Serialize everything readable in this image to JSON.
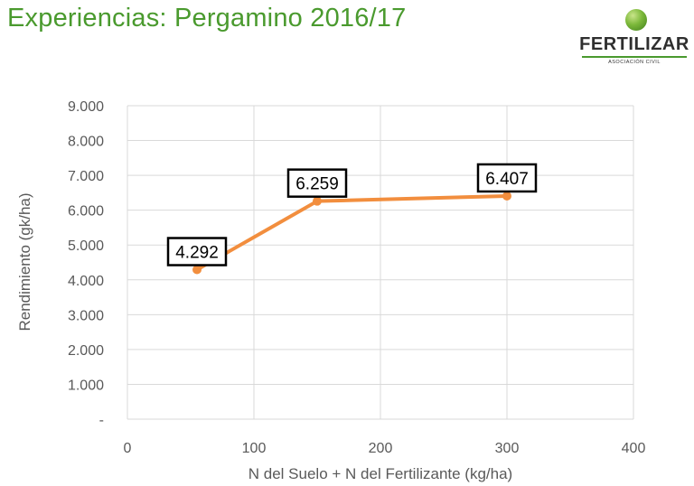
{
  "slide": {
    "title": "Experiencias: Pergamino 2016/17"
  },
  "logo": {
    "name": "FERTILIZAR",
    "subtitle": "ASOCIACIÓN CIVIL"
  },
  "colors": {
    "title": "#4a9a2e",
    "series": "#f28e3e",
    "grid": "#d9d9d9",
    "text": "#595959"
  },
  "chart_data": {
    "type": "line",
    "title": "",
    "xlabel": "N del Suelo + N del Fertilizante (kg/ha)",
    "ylabel": "Rendimiento (gk/ha)",
    "xlim": [
      0,
      400
    ],
    "ylim": [
      0,
      9000
    ],
    "x_ticks": [
      {
        "value": 0,
        "label": "0"
      },
      {
        "value": 100,
        "label": "100"
      },
      {
        "value": 200,
        "label": "200"
      },
      {
        "value": 300,
        "label": "300"
      },
      {
        "value": 400,
        "label": "400"
      }
    ],
    "y_ticks": [
      {
        "value": 0,
        "label": "-"
      },
      {
        "value": 1000,
        "label": "1.000"
      },
      {
        "value": 2000,
        "label": "2.000"
      },
      {
        "value": 3000,
        "label": "3.000"
      },
      {
        "value": 4000,
        "label": "4.000"
      },
      {
        "value": 5000,
        "label": "5.000"
      },
      {
        "value": 6000,
        "label": "6.000"
      },
      {
        "value": 7000,
        "label": "7.000"
      },
      {
        "value": 8000,
        "label": "8.000"
      },
      {
        "value": 9000,
        "label": "9.000"
      }
    ],
    "grid": true,
    "legend": "none",
    "series": [
      {
        "points": [
          {
            "x": 55,
            "y": 4292,
            "label": "4.292"
          },
          {
            "x": 150,
            "y": 6259,
            "label": "6.259"
          },
          {
            "x": 300,
            "y": 6407,
            "label": "6.407"
          }
        ]
      }
    ]
  }
}
